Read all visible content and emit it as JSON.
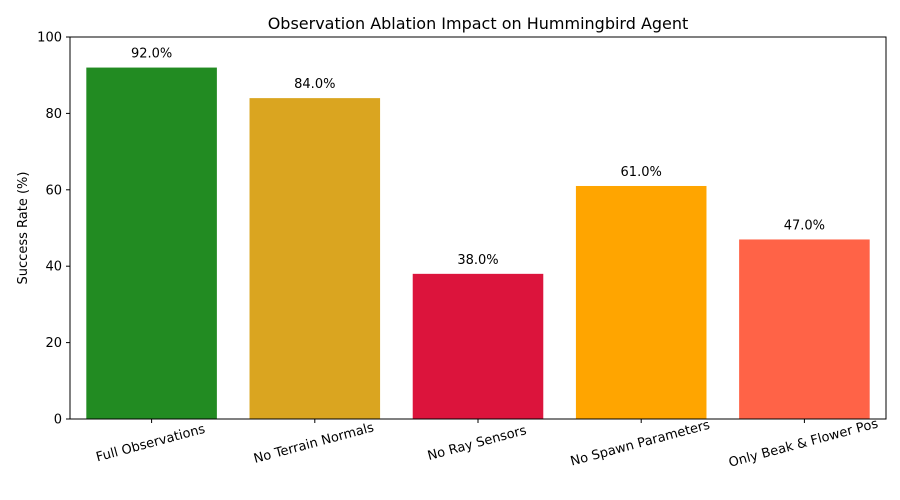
{
  "chart_data": {
    "type": "bar",
    "title": "Observation Ablation Impact on Hummingbird Agent",
    "xlabel": "",
    "ylabel": "Success Rate (%)",
    "ylim": [
      0,
      100
    ],
    "yticks": [
      0,
      20,
      40,
      60,
      80,
      100
    ],
    "categories": [
      "Full Observations",
      "No Terrain Normals",
      "No Ray Sensors",
      "No Spawn Parameters",
      "Only Beak & Flower Pos"
    ],
    "values": [
      92.0,
      84.0,
      38.0,
      61.0,
      47.0
    ],
    "value_labels": [
      "92.0%",
      "84.0%",
      "38.0%",
      "61.0%",
      "47.0%"
    ],
    "colors": [
      "#228b22",
      "#daa520",
      "#dc143c",
      "#ffa500",
      "#ff6347"
    ],
    "grid": false,
    "legend": "none"
  }
}
